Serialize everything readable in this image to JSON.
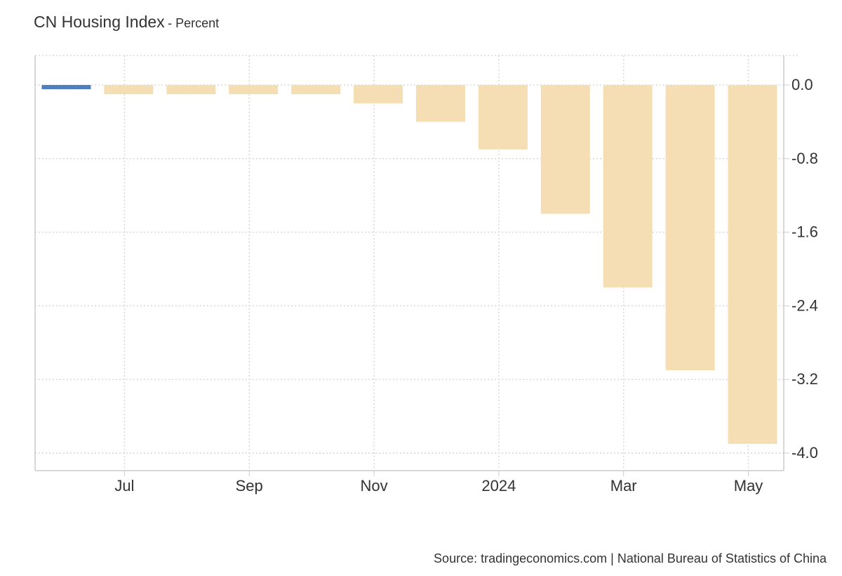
{
  "title": "CN Housing Index",
  "subtitle": "- Percent",
  "source": "Source: tradingeconomics.com | National Bureau of Statistics of China",
  "chart_data": {
    "type": "bar",
    "categories": [
      "Jun 2023",
      "Jul 2023",
      "Aug 2023",
      "Sep 2023",
      "Oct 2023",
      "Nov 2023",
      "Dec 2023",
      "Jan 2024",
      "Feb 2024",
      "Mar 2024",
      "Apr 2024",
      "May 2024"
    ],
    "values": [
      -0.04,
      -0.1,
      -0.1,
      -0.1,
      -0.1,
      -0.2,
      -0.4,
      -0.7,
      -1.4,
      -2.2,
      -3.1,
      -3.9
    ],
    "x_tick_labels": [
      {
        "label": "Jul",
        "category": "Jul 2023"
      },
      {
        "label": "Sep",
        "category": "Sep 2023"
      },
      {
        "label": "Nov",
        "category": "Nov 2023"
      },
      {
        "label": "2024",
        "category": "Jan 2024"
      },
      {
        "label": "Mar",
        "category": "Mar 2024"
      },
      {
        "label": "May",
        "category": "May 2024"
      }
    ],
    "y_ticks": [
      "0.0",
      "-0.8",
      "-1.6",
      "-2.4",
      "-3.2",
      "-4.0"
    ],
    "ylim": [
      -4.2,
      0.3
    ],
    "grid": true,
    "axis_side": "right",
    "colors": {
      "first_bar": "#4e7fc2",
      "bars": "#f5deb3",
      "grid": "#d9d9d9",
      "axis": "#cccccc"
    }
  }
}
